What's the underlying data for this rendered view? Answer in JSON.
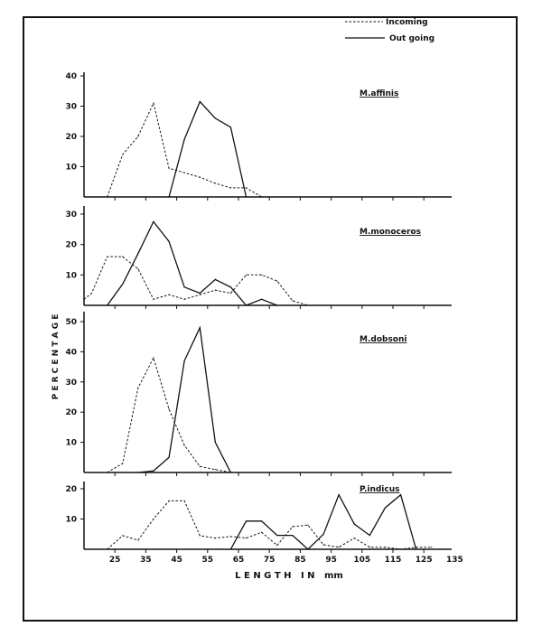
{
  "chart_data": [
    {
      "type": "line",
      "panel_label": "M.affinis",
      "ylim": [
        0,
        40
      ],
      "yticks": [
        "10",
        "20",
        "30",
        "40"
      ],
      "series": [
        {
          "name": "Incoming",
          "style": "dashed",
          "x": [
            22.5,
            27.5,
            32.5,
            37.5,
            42.5,
            47.5,
            52.5,
            57.5,
            62.5,
            67.5,
            72.5
          ],
          "y": [
            0,
            14,
            20,
            31,
            9.5,
            8,
            6.5,
            4.5,
            3,
            3,
            0
          ]
        },
        {
          "name": "Out going",
          "style": "solid",
          "x": [
            42.5,
            47.5,
            52.5,
            57.5,
            62.5,
            67.5
          ],
          "y": [
            0,
            19,
            31.5,
            26,
            23,
            0
          ]
        }
      ]
    },
    {
      "type": "line",
      "panel_label": "M.monoceros",
      "ylim": [
        0,
        30
      ],
      "yticks": [
        "10",
        "20",
        "30"
      ],
      "series": [
        {
          "name": "Incoming",
          "style": "dashed",
          "x": [
            15,
            17.5,
            22.5,
            27.5,
            32.5,
            37.5,
            42.5,
            47.5,
            52.5,
            57.5,
            62.5,
            67.5,
            72.5,
            77.5,
            82.5,
            87.5
          ],
          "y": [
            2,
            4,
            16,
            16,
            12,
            2,
            3.5,
            2,
            3.5,
            5,
            4,
            10,
            10,
            8,
            1.5,
            0
          ]
        },
        {
          "name": "Out going",
          "style": "solid",
          "x": [
            22.5,
            27.5,
            32.5,
            37.5,
            42.5,
            47.5,
            52.5,
            57.5,
            62.5,
            67.5,
            72.5,
            77.5
          ],
          "y": [
            0,
            7,
            17,
            27.5,
            21,
            6,
            4,
            8.5,
            6,
            0,
            2,
            0
          ]
        }
      ]
    },
    {
      "type": "line",
      "panel_label": "M.dobsoni",
      "ylim": [
        0,
        50
      ],
      "yticks": [
        "10",
        "20",
        "30",
        "40",
        "50"
      ],
      "series": [
        {
          "name": "Incoming",
          "style": "dashed",
          "x": [
            22.5,
            27.5,
            32.5,
            37.5,
            42.5,
            47.5,
            52.5,
            57.5,
            62.5
          ],
          "y": [
            0,
            3,
            28,
            38,
            21,
            9,
            2,
            1,
            0
          ]
        },
        {
          "name": "Out going",
          "style": "solid",
          "x": [
            32.5,
            37.5,
            42.5,
            47.5,
            52.5,
            57.5,
            62.5
          ],
          "y": [
            0,
            0.5,
            5,
            37,
            48,
            10,
            0
          ]
        }
      ]
    },
    {
      "type": "line",
      "panel_label": "P.indicus",
      "ylim": [
        0,
        20
      ],
      "yticks": [
        "10",
        "20"
      ],
      "series": [
        {
          "name": "Incoming",
          "style": "dashed",
          "x": [
            22.5,
            27.5,
            32.5,
            37.5,
            42.5,
            47.5,
            52.5,
            57.5,
            62.5,
            67.5,
            72.5,
            77.5,
            82.5,
            87.5,
            92.5,
            97.5,
            102.5,
            107.5,
            112.5,
            117.5,
            122.5,
            127.5
          ],
          "y": [
            0,
            4.5,
            3,
            10,
            16,
            16,
            4.5,
            3.7,
            4.2,
            3.7,
            5.6,
            1.3,
            7.5,
            8,
            1.5,
            0.7,
            3.7,
            0.7,
            0.7,
            0,
            0.7,
            0.7
          ]
        },
        {
          "name": "Out going",
          "style": "solid",
          "x": [
            62.5,
            67.5,
            72.5,
            77.5,
            82.5,
            87.5,
            92.5,
            97.5,
            102.5,
            107.5,
            112.5,
            117.5,
            122.5
          ],
          "y": [
            0,
            9.3,
            9.3,
            4.6,
            4.6,
            0,
            5,
            18,
            8.3,
            4.6,
            13.7,
            18,
            0
          ]
        }
      ]
    }
  ],
  "xaxis": {
    "xlim": [
      15,
      135
    ],
    "ticks": [
      "25",
      "35",
      "45",
      "55",
      "65",
      "75",
      "85",
      "95",
      "105",
      "115",
      "125",
      "135"
    ],
    "label": "L E N G T H   I N   mm"
  },
  "yaxis": {
    "label": "P E R C E N T A G E"
  },
  "legend": {
    "placement": "top-right",
    "incoming": "Incoming",
    "outgoing": "Out going"
  },
  "colors": {
    "ink": "#111111",
    "background": "#ffffff"
  }
}
